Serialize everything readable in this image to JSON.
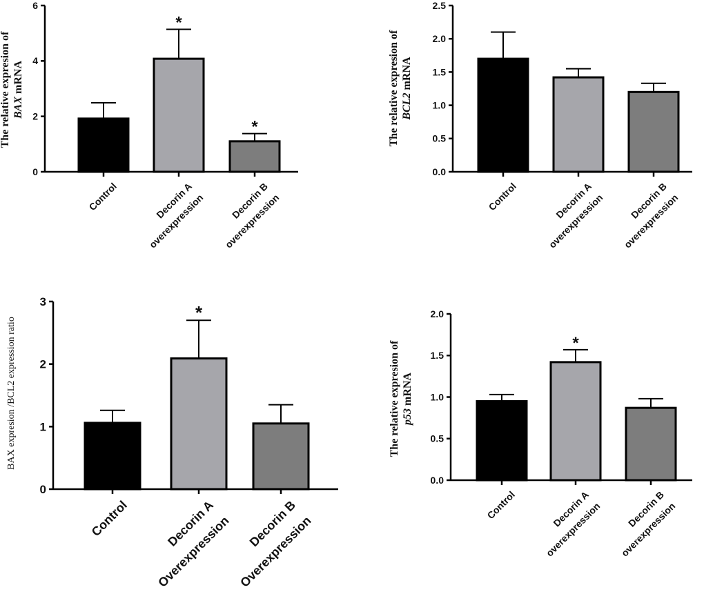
{
  "chart_data": [
    {
      "type": "bar",
      "id": "bax",
      "categories": [
        [
          "Control"
        ],
        [
          "Decorin A",
          "overexpression"
        ],
        [
          "Decorin B",
          "overexpression"
        ]
      ],
      "values": [
        1.92,
        4.08,
        1.1
      ],
      "errors": [
        0.57,
        1.06,
        0.28
      ],
      "significance": [
        "",
        "*",
        "*"
      ],
      "colors": [
        "#000000",
        "#a6a6ab",
        "#7d7d7d"
      ],
      "ylim": [
        0,
        6
      ],
      "yticks": [
        "0",
        "2",
        "4",
        "6"
      ],
      "ytick_values": [
        0,
        2,
        4,
        6
      ],
      "ylabel": {
        "line1": "The relative expresion of",
        "line2_italic": "BAX",
        "line2_rest": " mRNA"
      },
      "title": "",
      "xlabel": ""
    },
    {
      "type": "bar",
      "id": "bcl2",
      "categories": [
        [
          "Control"
        ],
        [
          "Decorin A",
          "overexpression"
        ],
        [
          "Decorin B",
          "overexpression"
        ]
      ],
      "values": [
        1.7,
        1.42,
        1.2
      ],
      "errors": [
        0.4,
        0.13,
        0.13
      ],
      "significance": [
        "",
        "",
        ""
      ],
      "colors": [
        "#000000",
        "#a6a6ab",
        "#7d7d7d"
      ],
      "ylim": [
        0,
        2.5
      ],
      "yticks": [
        "0.0",
        "0.5",
        "1.0",
        "1.5",
        "2.0",
        "2.5"
      ],
      "ytick_values": [
        0,
        0.5,
        1.0,
        1.5,
        2.0,
        2.5
      ],
      "ylabel": {
        "line1": "The relative expresion of",
        "line2_italic": "BCL2",
        "line2_rest": " mRNA"
      },
      "title": "",
      "xlabel": ""
    },
    {
      "type": "bar",
      "id": "ratio",
      "categories": [
        [
          "Control"
        ],
        [
          "Decorin A",
          "Overexpression"
        ],
        [
          "Decorin B",
          "Overexpression"
        ]
      ],
      "values": [
        1.06,
        2.09,
        1.05
      ],
      "errors": [
        0.2,
        0.61,
        0.3
      ],
      "significance": [
        "",
        "*",
        ""
      ],
      "colors": [
        "#000000",
        "#a6a6ab",
        "#7d7d7d"
      ],
      "ylim": [
        0,
        3
      ],
      "yticks": [
        "0",
        "1",
        "2",
        "3"
      ],
      "ytick_values": [
        0,
        1,
        2,
        3
      ],
      "ylabel": {
        "plain": "BAX expresion /BCL2 expression ratio"
      },
      "title": "",
      "xlabel": ""
    },
    {
      "type": "bar",
      "id": "p53",
      "categories": [
        [
          "Control"
        ],
        [
          "Decorin A",
          "overexpression"
        ],
        [
          "Decorin B",
          "overexpression"
        ]
      ],
      "values": [
        0.95,
        1.42,
        0.87
      ],
      "errors": [
        0.08,
        0.15,
        0.11
      ],
      "significance": [
        "",
        "*",
        ""
      ],
      "colors": [
        "#000000",
        "#a6a6ab",
        "#7d7d7d"
      ],
      "ylim": [
        0,
        2.0
      ],
      "yticks": [
        "0.0",
        "0.5",
        "1.0",
        "1.5",
        "2.0"
      ],
      "ytick_values": [
        0,
        0.5,
        1.0,
        1.5,
        2.0
      ],
      "ylabel": {
        "line1": "The relative expresion of",
        "line2_italic": "p53",
        "line2_rest": " mRNA"
      },
      "title": "",
      "xlabel": ""
    }
  ]
}
